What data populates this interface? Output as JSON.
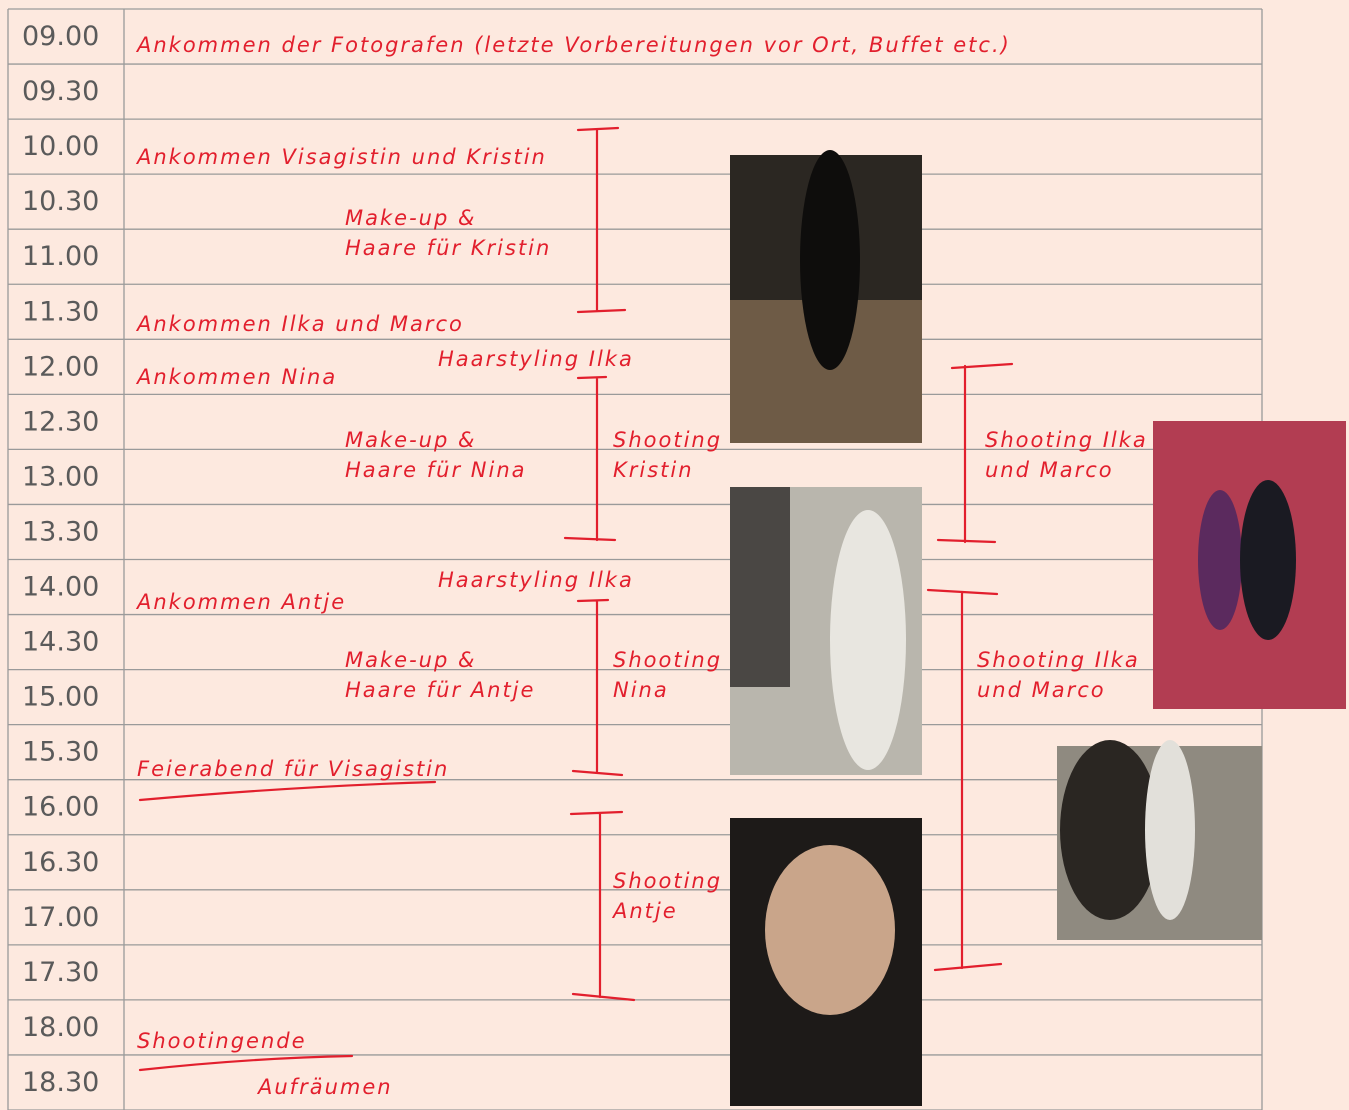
{
  "schedule": {
    "times": [
      "09.00",
      "09.30",
      "10.00",
      "10.30",
      "11.00",
      "11.30",
      "12.00",
      "12.30",
      "13.00",
      "13.30",
      "14.00",
      "14.30",
      "15.00",
      "15.30",
      "16.00",
      "16.30",
      "17.00",
      "17.30",
      "18.00",
      "18.30"
    ],
    "notes": [
      {
        "lines": [
          "Ankommen der Fotografen (letzte Vorbereitungen vor Ort, Buffet etc.)"
        ]
      },
      {
        "lines": [
          "Ankommen Visagistin und Kristin"
        ]
      },
      {
        "lines": [
          "Make-up &",
          "Haare für Kristin"
        ]
      },
      {
        "lines": [
          "Ankommen Ilka und Marco"
        ]
      },
      {
        "lines": [
          "Ankommen Nina"
        ]
      },
      {
        "lines": [
          "Haarstyling Ilka"
        ]
      },
      {
        "lines": [
          "Make-up &",
          "Haare für Nina"
        ]
      },
      {
        "lines": [
          "Shooting",
          "Kristin"
        ]
      },
      {
        "lines": [
          "Shooting Ilka",
          "und Marco"
        ]
      },
      {
        "lines": [
          "Haarstyling Ilka"
        ]
      },
      {
        "lines": [
          "Ankommen Antje"
        ]
      },
      {
        "lines": [
          "Make-up &",
          "Haare für Antje"
        ]
      },
      {
        "lines": [
          "Shooting",
          "Nina"
        ]
      },
      {
        "lines": [
          "Shooting Ilka",
          "und Marco"
        ]
      },
      {
        "lines": [
          "Feierabend für Visagistin"
        ]
      },
      {
        "lines": [
          "Shooting",
          "Antje"
        ]
      },
      {
        "lines": [
          "Shootingende"
        ]
      },
      {
        "lines": [
          "Aufräumen"
        ]
      }
    ]
  }
}
